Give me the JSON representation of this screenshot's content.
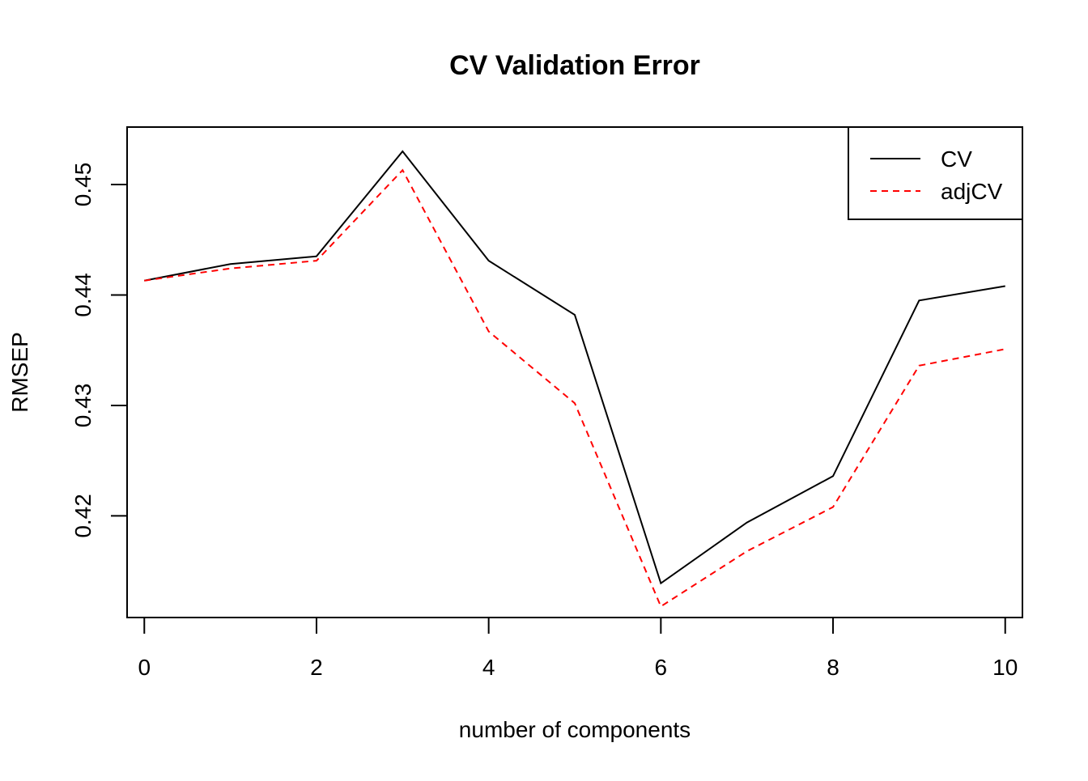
{
  "chart_data": {
    "type": "line",
    "title": "CV Validation Error",
    "xlabel": "number of components",
    "ylabel": "RMSEP",
    "x": [
      0,
      1,
      2,
      3,
      4,
      5,
      6,
      7,
      8,
      9,
      10
    ],
    "series": [
      {
        "name": "CV",
        "color": "#000000",
        "line_style": "solid",
        "values": [
          0.4413,
          0.4428,
          0.4435,
          0.453,
          0.4431,
          0.4382,
          0.4139,
          0.4194,
          0.4236,
          0.4395,
          0.4408
        ]
      },
      {
        "name": "adjCV",
        "color": "#ff0000",
        "line_style": "dashed",
        "values": [
          0.4413,
          0.4424,
          0.4431,
          0.4513,
          0.4367,
          0.4302,
          0.4118,
          0.4168,
          0.4208,
          0.4336,
          0.4351
        ]
      }
    ],
    "xlim": [
      -0.2,
      10.2
    ],
    "ylim": [
      0.4108,
      0.4552
    ],
    "x_ticks": [
      "0",
      "2",
      "4",
      "6",
      "8",
      "10"
    ],
    "y_ticks": [
      "0.42",
      "0.43",
      "0.44",
      "0.45"
    ],
    "grid": false,
    "legend_position": "top-right"
  }
}
